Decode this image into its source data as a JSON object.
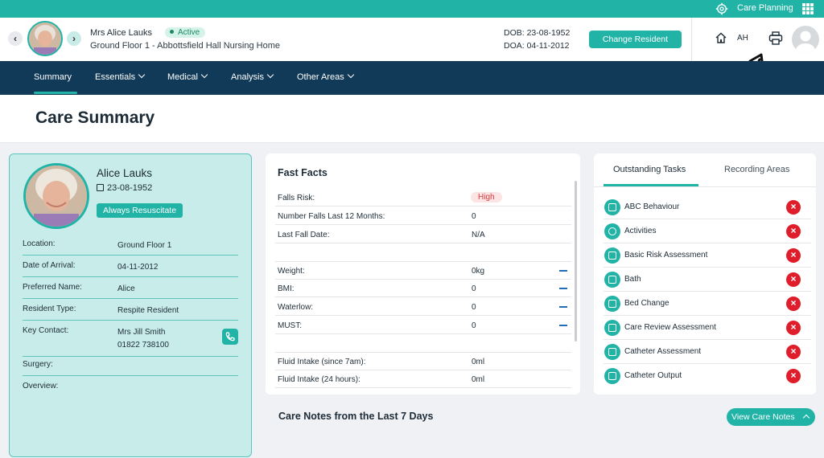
{
  "topbar": {
    "care_planning_label": "Care Planning",
    "settings_icon": "gear-icon",
    "apps_icon": "grid-icon"
  },
  "resident_header": {
    "name": "Mrs Alice Lauks",
    "status": "Active",
    "location": "Ground Floor 1 - Abbottsfield Hall Nursing Home",
    "dob": "DOB: 23-08-1952",
    "doa": "DOA: 04-11-2012",
    "change_button": "Change Resident",
    "user_initials": "AH"
  },
  "nav": {
    "items": [
      {
        "label": "Summary"
      },
      {
        "label": "Essentials"
      },
      {
        "label": "Medical"
      },
      {
        "label": "Analysis"
      },
      {
        "label": "Other Areas"
      }
    ],
    "active": "Summary"
  },
  "page": {
    "title": "Care Summary"
  },
  "resident_card": {
    "name": "Alice Lauks",
    "dob": "23-08-1952",
    "resus_badge": "Always Resuscitate",
    "rows": [
      {
        "label": "Location:",
        "value": "Ground Floor 1"
      },
      {
        "label": "Date of Arrival:",
        "value": "04-11-2012"
      },
      {
        "label": "Preferred Name:",
        "value": "Alice"
      },
      {
        "label": "Resident Type:",
        "value": "Respite Resident"
      },
      {
        "label": "Key Contact:",
        "value": "Mrs Jill Smith",
        "value2": "01822 738100"
      },
      {
        "label": "Surgery:",
        "value": ""
      },
      {
        "label": "Overview:",
        "value": ""
      }
    ]
  },
  "fast_facts": {
    "title": "Fast Facts",
    "rows": [
      {
        "label": "Falls Risk:",
        "value": "High"
      },
      {
        "label": "Number Falls Last 12 Months:",
        "value": "0"
      },
      {
        "label": "Last Fall Date:",
        "value": "N/A"
      },
      {
        "label": "Weight:",
        "value": "0kg"
      },
      {
        "label": "BMI:",
        "value": "0"
      },
      {
        "label": "Waterlow:",
        "value": "0"
      },
      {
        "label": "MUST:",
        "value": "0"
      },
      {
        "label": "Fluid Intake (since 7am):",
        "value": "0ml"
      },
      {
        "label": "Fluid Intake (24 hours):",
        "value": "0ml"
      }
    ]
  },
  "tasks": {
    "tabs": [
      {
        "label": "Outstanding Tasks"
      },
      {
        "label": "Recording Areas"
      }
    ],
    "items": [
      {
        "label": "ABC Behaviour"
      },
      {
        "label": "Activities"
      },
      {
        "label": "Basic Risk Assessment"
      },
      {
        "label": "Bath"
      },
      {
        "label": "Bed Change"
      },
      {
        "label": "Care Review Assessment"
      },
      {
        "label": "Catheter Assessment"
      },
      {
        "label": "Catheter Output"
      }
    ]
  },
  "care_notes": {
    "title": "Care Notes from the Last 7 Days",
    "button": "View Care Notes"
  },
  "colors": {
    "teal": "#22b3a7",
    "navy": "#103a57",
    "danger": "#e01e2b"
  }
}
